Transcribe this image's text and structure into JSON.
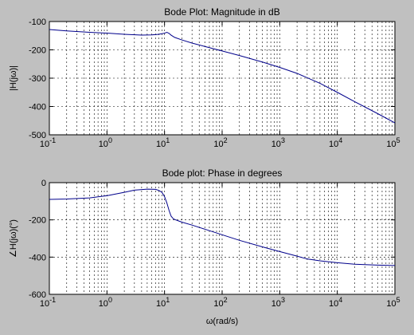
{
  "chart_data": [
    {
      "type": "line",
      "title": "Bode Plot: Magnitude in dB",
      "xlabel": "",
      "ylabel": "|H(jω)|",
      "xscale": "log",
      "xlim": [
        0.1,
        100000
      ],
      "ylim": [
        -500,
        -100
      ],
      "grid": true,
      "xtick_labels": [
        {
          "base": "10",
          "exp": "-1"
        },
        {
          "base": "10",
          "exp": "0"
        },
        {
          "base": "10",
          "exp": "1"
        },
        {
          "base": "10",
          "exp": "2"
        },
        {
          "base": "10",
          "exp": "3"
        },
        {
          "base": "10",
          "exp": "4"
        },
        {
          "base": "10",
          "exp": "5"
        }
      ],
      "ytick_labels": [
        "-100",
        "-200",
        "-300",
        "-400",
        "-500"
      ],
      "line_color": "#00008b",
      "series": [
        {
          "x": [
            0.1,
            0.2,
            0.5,
            1,
            2,
            4,
            6,
            8,
            10,
            11,
            12,
            13,
            15,
            20,
            30,
            50,
            100,
            200,
            500,
            1000,
            2000,
            5000,
            10000,
            20000,
            50000,
            100000
          ],
          "y": [
            -128,
            -133,
            -138,
            -141,
            -145,
            -148,
            -147,
            -145,
            -141,
            -138,
            -142,
            -148,
            -156,
            -165,
            -176,
            -188,
            -204,
            -220,
            -243,
            -262,
            -283,
            -318,
            -350,
            -383,
            -425,
            -458
          ]
        }
      ]
    },
    {
      "type": "line",
      "title": "Bode plot: Phase in degrees",
      "xlabel": "ω(rad/s)",
      "ylabel": "∠H(jω)(°)",
      "xscale": "log",
      "xlim": [
        0.1,
        100000
      ],
      "ylim": [
        -600,
        0
      ],
      "grid": true,
      "xtick_labels": [
        {
          "base": "10",
          "exp": "-1"
        },
        {
          "base": "10",
          "exp": "0"
        },
        {
          "base": "10",
          "exp": "1"
        },
        {
          "base": "10",
          "exp": "2"
        },
        {
          "base": "10",
          "exp": "3"
        },
        {
          "base": "10",
          "exp": "4"
        },
        {
          "base": "10",
          "exp": "5"
        }
      ],
      "ytick_labels": [
        "0",
        "-200",
        "-400",
        "-600"
      ],
      "line_color": "#00008b",
      "series": [
        {
          "x": [
            0.1,
            0.2,
            0.5,
            1,
            2,
            3,
            5,
            7,
            8,
            9,
            10,
            11,
            12,
            13,
            14,
            15,
            17,
            20,
            30,
            50,
            100,
            200,
            500,
            1000,
            2000,
            3000,
            5000,
            10000,
            20000,
            50000,
            100000
          ],
          "y": [
            -90,
            -88,
            -82,
            -70,
            -52,
            -40,
            -35,
            -36,
            -42,
            -52,
            -75,
            -110,
            -150,
            -180,
            -192,
            -198,
            -204,
            -212,
            -228,
            -250,
            -280,
            -310,
            -345,
            -370,
            -395,
            -410,
            -420,
            -430,
            -438,
            -443,
            -445
          ]
        }
      ]
    }
  ]
}
